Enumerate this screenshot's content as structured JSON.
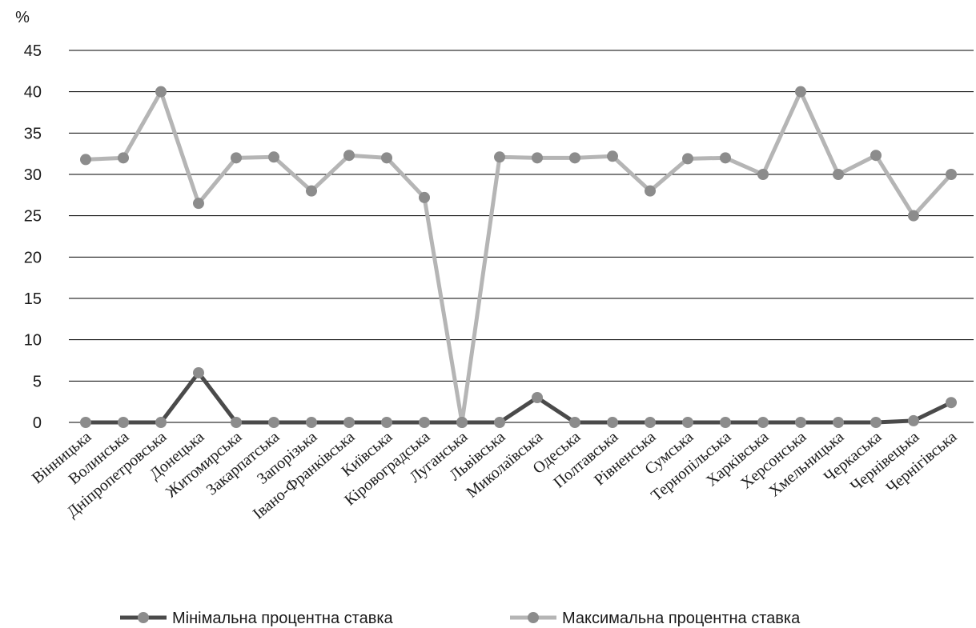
{
  "chart_data": {
    "type": "line",
    "ylabel": "%",
    "ylim": [
      0,
      45
    ],
    "yticks": [
      0,
      5,
      10,
      15,
      20,
      25,
      30,
      35,
      40,
      45
    ],
    "grid": true,
    "legend_position": "bottom",
    "categories": [
      "Вінницька",
      "Волинська",
      "Дніпропетровська",
      "Донецька",
      "Житомирська",
      "Закарпатська",
      "Запорізька",
      "Івано-Франківська",
      "Київська",
      "Кіровоградська",
      "Луганська",
      "Львівська",
      "Миколаївська",
      "Одеська",
      "Полтавська",
      "Рівненська",
      "Сумська",
      "Тернопільська",
      "Харківська",
      "Херсонська",
      "Хмельницька",
      "Черкаська",
      "Чернівецька",
      "Чернігівська"
    ],
    "series": [
      {
        "name": "Мінімальна процентна ставка",
        "color": "#4a4a4a",
        "values": [
          0,
          0,
          0,
          6,
          0,
          0,
          0,
          0,
          0,
          0,
          0,
          0,
          3,
          0,
          0,
          0,
          0,
          0,
          0,
          0,
          0,
          0,
          0.2,
          2.4
        ]
      },
      {
        "name": "Максимальна процентна ставка",
        "color": "#b5b5b5",
        "values": [
          31.8,
          32,
          40,
          26.5,
          32,
          32.1,
          28,
          32.3,
          32,
          27.2,
          0,
          32.1,
          32,
          32,
          32.2,
          28,
          31.9,
          32,
          30,
          40,
          30,
          32.3,
          25,
          30
        ]
      }
    ]
  }
}
